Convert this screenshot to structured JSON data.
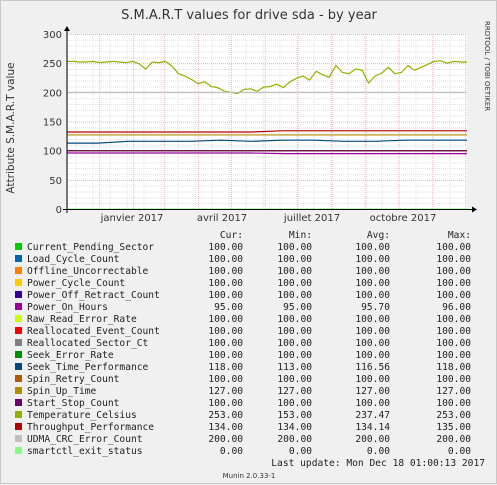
{
  "chart_data": {
    "type": "line",
    "title": "S.M.A.R.T values for drive sda - by year",
    "ylabel": "Attribute S.M.A.R.T value",
    "side_label": "RRDTOOL / TOBI OETIKER",
    "ylim": [
      0,
      300
    ],
    "y_ticks": [
      0,
      50,
      100,
      150,
      200,
      250,
      300
    ],
    "x_ticks": [
      "janvier 2017",
      "avril 2017",
      "juillet 2017",
      "octobre 2017"
    ],
    "grid": true,
    "legend_headers": [
      "Cur:",
      "Min:",
      "Avg:",
      "Max:"
    ],
    "series": [
      {
        "name": "Current_Pending_Sector",
        "color": "#00cc00",
        "stats": [
          "100.00",
          "100.00",
          "100.00",
          "100.00"
        ],
        "values": [
          100
        ]
      },
      {
        "name": "Load_Cycle_Count",
        "color": "#0066b3",
        "stats": [
          "100.00",
          "100.00",
          "100.00",
          "100.00"
        ],
        "values": [
          100
        ]
      },
      {
        "name": "Offline_Uncorrectable",
        "color": "#ff8000",
        "stats": [
          "100.00",
          "100.00",
          "100.00",
          "100.00"
        ],
        "values": [
          100
        ]
      },
      {
        "name": "Power_Cycle_Count",
        "color": "#ffcc00",
        "stats": [
          "100.00",
          "100.00",
          "100.00",
          "100.00"
        ],
        "values": [
          100
        ]
      },
      {
        "name": "Power_Off_Retract_Count",
        "color": "#330099",
        "stats": [
          "100.00",
          "100.00",
          "100.00",
          "100.00"
        ],
        "values": [
          100
        ]
      },
      {
        "name": "Power_On_Hours",
        "color": "#990099",
        "stats": [
          "95.00",
          "95.00",
          "95.70",
          "96.00"
        ],
        "values": [
          96,
          96,
          96,
          96,
          96,
          96,
          95,
          95,
          95,
          95,
          95,
          95
        ]
      },
      {
        "name": "Raw_Read_Error_Rate",
        "color": "#ccff00",
        "stats": [
          "100.00",
          "100.00",
          "100.00",
          "100.00"
        ],
        "values": [
          100
        ]
      },
      {
        "name": "Reallocated_Event_Count",
        "color": "#ff0000",
        "stats": [
          "100.00",
          "100.00",
          "100.00",
          "100.00"
        ],
        "values": [
          100
        ]
      },
      {
        "name": "Reallocated_Sector_Ct",
        "color": "#808080",
        "stats": [
          "100.00",
          "100.00",
          "100.00",
          "100.00"
        ],
        "values": [
          100
        ]
      },
      {
        "name": "Seek_Error_Rate",
        "color": "#008f00",
        "stats": [
          "100.00",
          "100.00",
          "100.00",
          "100.00"
        ],
        "values": [
          100
        ]
      },
      {
        "name": "Seek_Time_Performance",
        "color": "#00487d",
        "stats": [
          "118.00",
          "113.00",
          "116.56",
          "118.00"
        ],
        "values": [
          113,
          113,
          116,
          116,
          116,
          118,
          116,
          118,
          118,
          116,
          116,
          118,
          118,
          118
        ]
      },
      {
        "name": "Spin_Retry_Count",
        "color": "#b35a00",
        "stats": [
          "100.00",
          "100.00",
          "100.00",
          "100.00"
        ],
        "values": [
          100
        ]
      },
      {
        "name": "Spin_Up_Time",
        "color": "#b38f00",
        "stats": [
          "127.00",
          "127.00",
          "127.00",
          "127.00"
        ],
        "values": [
          127
        ]
      },
      {
        "name": "Start_Stop_Count",
        "color": "#6b006b",
        "stats": [
          "100.00",
          "100.00",
          "100.00",
          "100.00"
        ],
        "values": [
          100
        ]
      },
      {
        "name": "Temperature_Celsius",
        "color": "#8fb300",
        "stats": [
          "253.00",
          "153.00",
          "237.47",
          "253.00"
        ],
        "values": [
          253,
          253,
          252,
          252,
          253,
          251,
          252,
          253,
          252,
          251,
          253,
          249,
          240,
          252,
          251,
          253,
          245,
          232,
          228,
          222,
          215,
          218,
          210,
          208,
          202,
          200,
          198,
          205,
          206,
          202,
          209,
          210,
          214,
          208,
          218,
          224,
          228,
          221,
          236,
          230,
          226,
          246,
          234,
          232,
          240,
          238,
          216,
          228,
          233,
          243,
          232,
          234,
          246,
          238,
          243,
          248,
          253,
          254,
          250,
          253,
          252,
          252
        ]
      },
      {
        "name": "Throughput_Performance",
        "color": "#b30000",
        "stats": [
          "134.00",
          "134.00",
          "134.14",
          "135.00"
        ],
        "values": [
          132,
          132,
          132,
          132,
          132,
          132,
          132,
          134,
          134,
          134,
          134,
          134,
          134,
          134
        ]
      },
      {
        "name": "UDMA_CRC_Error_Count",
        "color": "#bebebe",
        "stats": [
          "200.00",
          "200.00",
          "200.00",
          "200.00"
        ],
        "values": [
          200
        ]
      },
      {
        "name": "smartctl_exit_status",
        "color": "#80ff80",
        "stats": [
          "0.00",
          "0.00",
          "0.00",
          "0.00"
        ],
        "values": [
          0
        ]
      }
    ]
  },
  "footer": {
    "last_update": "Last update:  Mon Dec 18 01:00:13 2017",
    "version": "Munin 2.0.33-1"
  }
}
